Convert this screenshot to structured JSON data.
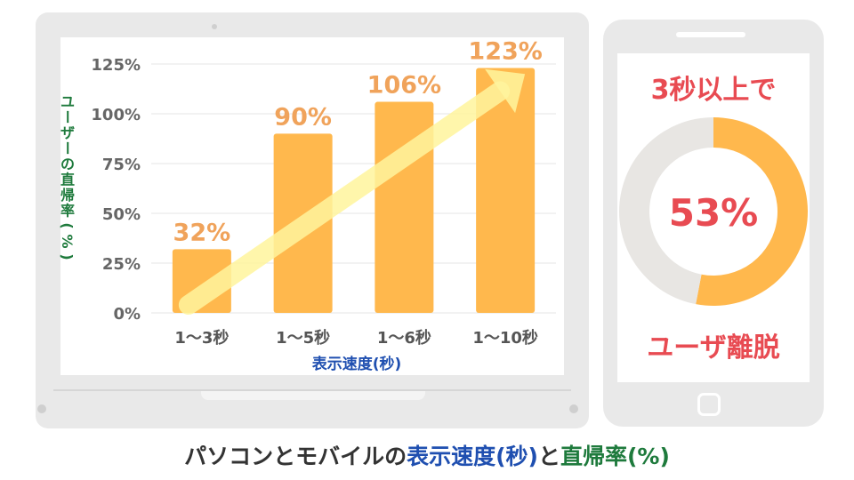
{
  "chart_data": [
    {
      "type": "bar",
      "categories": [
        "1〜3秒",
        "1〜5秒",
        "1〜6秒",
        "1〜10秒"
      ],
      "values": [
        32,
        90,
        106,
        123
      ],
      "data_labels": [
        "32%",
        "90%",
        "106%",
        "123%"
      ],
      "xlabel": "表示速度(秒)",
      "ylabel": "ユーザーの直帰率(%)",
      "ylim": [
        0,
        125
      ],
      "yticks": [
        "0%",
        "25%",
        "50%",
        "75%",
        "100%",
        "125%"
      ],
      "grid": true,
      "bar_color": "#ffb84d",
      "trend_arrow_color": "#fff59d"
    },
    {
      "type": "pie",
      "values": [
        53,
        47
      ],
      "center_label": "53%",
      "colors": [
        "#ffb84d",
        "#e8e6e3"
      ]
    }
  ],
  "phone": {
    "headline": "3秒以上で",
    "bottom_label": "ユーザ離脱"
  },
  "footer": {
    "part1": "パソコンとモバイルの",
    "part2": "表示速度(秒)",
    "part3": "と",
    "part4": "直帰率(%)"
  },
  "colors": {
    "accent_red": "#e84b52",
    "label_orange": "#f0a35b",
    "axis_blue": "#1f4fb0",
    "axis_green": "#1e7a3c"
  }
}
